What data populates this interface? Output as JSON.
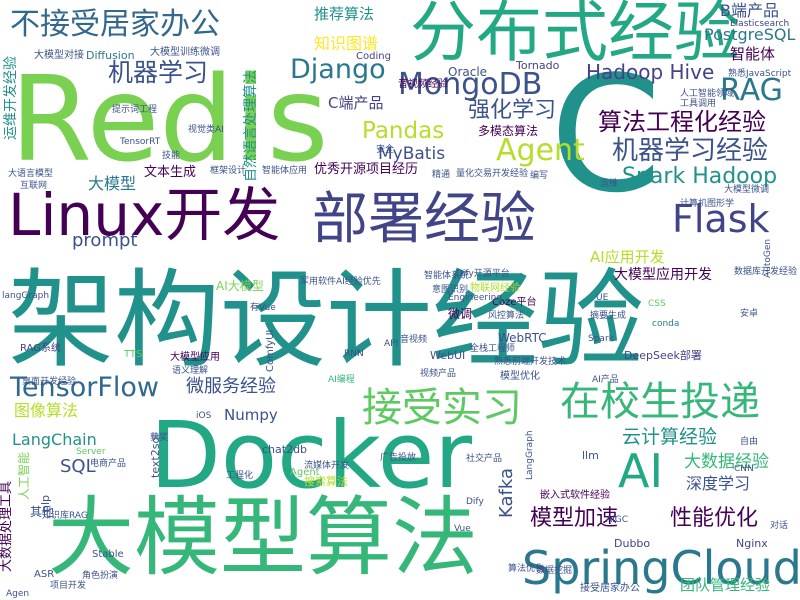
{
  "colors": {
    "background": "#ffffff",
    "palette": [
      "#440154",
      "#3b528b",
      "#21918c",
      "#5ec962",
      "#fde725",
      "#7ad151",
      "#2a788e",
      "#414487",
      "#22a884",
      "#35b779",
      "#b5de2b",
      "#31688e"
    ]
  },
  "words": [
    {
      "text": "架构设计经验",
      "color": "#21918c",
      "vertical": false
    },
    {
      "text": "Redis",
      "color": "#7ad151",
      "vertical": false
    },
    {
      "text": "Docker",
      "color": "#22a884",
      "vertical": false
    },
    {
      "text": "大模型算法",
      "color": "#35b779",
      "vertical": false
    },
    {
      "text": "C",
      "color": "#21918c",
      "vertical": false
    },
    {
      "text": "分布式经验",
      "color": "#22a884",
      "vertical": false
    },
    {
      "text": "Linux开发",
      "color": "#440154",
      "vertical": false
    },
    {
      "text": "部署经验",
      "color": "#414487",
      "vertical": false
    },
    {
      "text": "不接受居家办公",
      "color": "#31688e",
      "vertical": false
    },
    {
      "text": "SpringCloud",
      "color": "#2a788e",
      "vertical": false
    },
    {
      "text": "接受实习",
      "color": "#5ec962",
      "vertical": false
    },
    {
      "text": "在校生投递",
      "color": "#35b779",
      "vertical": false
    },
    {
      "text": "AI",
      "color": "#22a884",
      "vertical": false
    },
    {
      "text": "Flask",
      "color": "#414487",
      "vertical": false
    },
    {
      "text": "MongoDB",
      "color": "#3b528b",
      "vertical": false
    },
    {
      "text": "TensorFlow",
      "color": "#31688e",
      "vertical": false
    },
    {
      "text": "Django",
      "color": "#2a788e",
      "vertical": false
    },
    {
      "text": "Agent",
      "color": "#b5de2b",
      "vertical": false
    },
    {
      "text": "RAG",
      "color": "#2a788e",
      "vertical": false
    },
    {
      "text": "机器学习",
      "color": "#3b528b",
      "vertical": false
    },
    {
      "text": "算法工程化经验",
      "color": "#440154",
      "vertical": false
    },
    {
      "text": "机器学习经验",
      "color": "#3b528b",
      "vertical": false
    },
    {
      "text": "Spark Hadoop",
      "color": "#21918c",
      "vertical": false
    },
    {
      "text": "强化学习",
      "color": "#3b528b",
      "vertical": false
    },
    {
      "text": "Hadoop Hive",
      "color": "#414487",
      "vertical": false
    },
    {
      "text": "Pandas",
      "color": "#b5de2b",
      "vertical": false
    },
    {
      "text": "推荐算法",
      "color": "#21918c",
      "vertical": false
    },
    {
      "text": "知识图谱",
      "color": "#fde725",
      "vertical": false
    },
    {
      "text": "B端产品",
      "color": "#3b528b",
      "vertical": false
    },
    {
      "text": "PostgreSQL",
      "color": "#2a788e",
      "vertical": false
    },
    {
      "text": "智能体",
      "color": "#440154",
      "vertical": false
    },
    {
      "text": "微服务经验",
      "color": "#3b528b",
      "vertical": false
    },
    {
      "text": "云计算经验",
      "color": "#21918c",
      "vertical": false
    },
    {
      "text": "大数据经验",
      "color": "#35b779",
      "vertical": false
    },
    {
      "text": "深度学习",
      "color": "#3b528b",
      "vertical": false
    },
    {
      "text": "模型加速",
      "color": "#440154",
      "vertical": false
    },
    {
      "text": "性能优化",
      "color": "#440154",
      "vertical": false
    },
    {
      "text": "团队管理经验",
      "color": "#35b779",
      "vertical": false
    },
    {
      "text": "Kafka",
      "color": "#3b528b",
      "vertical": true
    },
    {
      "text": "prompt",
      "color": "#3b528b",
      "vertical": false
    },
    {
      "text": "SQL",
      "color": "#3b528b",
      "vertical": false
    },
    {
      "text": "LangChain",
      "color": "#21918c",
      "vertical": false
    },
    {
      "text": "图像算法",
      "color": "#b5de2b",
      "vertical": false
    },
    {
      "text": "Numpy",
      "color": "#3b528b",
      "vertical": false
    },
    {
      "text": "MyBatis",
      "color": "#3b528b",
      "vertical": false
    },
    {
      "text": "C端产品",
      "color": "#414487",
      "vertical": false
    },
    {
      "text": "AI应用开发",
      "color": "#b5de2b",
      "vertical": false
    },
    {
      "text": "大模型应用开发",
      "color": "#440154",
      "vertical": false
    },
    {
      "text": "优秀开源项目经历",
      "color": "#440154",
      "vertical": false
    },
    {
      "text": "大模型",
      "color": "#2a788e",
      "vertical": false
    },
    {
      "text": "文本生成",
      "color": "#440154",
      "vertical": false
    },
    {
      "text": "自然语言处理算法",
      "color": "#21918c",
      "vertical": true
    },
    {
      "text": "多模态算法",
      "color": "#440154",
      "vertical": false
    },
    {
      "text": "运维开发经验",
      "color": "#21918c",
      "vertical": true
    },
    {
      "text": "大模型对接",
      "color": "#3b528b",
      "vertical": false
    },
    {
      "text": "Diffusion",
      "color": "#2a788e",
      "vertical": false
    },
    {
      "text": "大模型训练微调",
      "color": "#3b528b",
      "vertical": false
    },
    {
      "text": "Oracle",
      "color": "#3b528b",
      "vertical": false
    },
    {
      "text": "Tornado",
      "color": "#414487",
      "vertical": false
    },
    {
      "text": "Coding",
      "color": "#414487",
      "vertical": false
    },
    {
      "text": "音视频经验",
      "color": "#440154",
      "vertical": false
    },
    {
      "text": "AI大模型",
      "color": "#7ad151",
      "vertical": false
    },
    {
      "text": "RAG系统",
      "color": "#414487",
      "vertical": false
    },
    {
      "text": "WebRTC",
      "color": "#3b528b",
      "vertical": false
    },
    {
      "text": "WebUI",
      "color": "#3b528b",
      "vertical": false
    },
    {
      "text": "微调",
      "color": "#440154",
      "vertical": false
    },
    {
      "text": "Coze平台",
      "color": "#440154",
      "vertical": false
    },
    {
      "text": "DeepSeek部署",
      "color": "#414487",
      "vertical": false
    },
    {
      "text": "chat2db",
      "color": "#3b528b",
      "vertical": false
    },
    {
      "text": "大数据处理工具",
      "color": "#440154",
      "vertical": true
    },
    {
      "text": "人工智能",
      "color": "#7ad151",
      "vertical": true
    },
    {
      "text": "其他",
      "color": "#3b528b",
      "vertical": false
    },
    {
      "text": "Nginx",
      "color": "#414487",
      "vertical": false
    },
    {
      "text": "Dubbo",
      "color": "#414487",
      "vertical": false
    },
    {
      "text": "嵌入式软件经验",
      "color": "#440154",
      "vertical": false
    },
    {
      "text": "Stable",
      "color": "#3b528b",
      "vertical": false
    },
    {
      "text": "ASR",
      "color": "#3b528b",
      "vertical": false
    },
    {
      "text": "接受居家办公",
      "color": "#3b528b",
      "vertical": false
    },
    {
      "text": "项目开发",
      "color": "#3b528b",
      "vertical": false
    },
    {
      "text": "text2sql",
      "color": "#3b528b",
      "vertical": true
    },
    {
      "text": "TTS",
      "color": "#5ec962",
      "vertical": false
    },
    {
      "text": "Elasticsearch",
      "color": "#414487",
      "vertical": false
    },
    {
      "text": "llm",
      "color": "#3b528b",
      "vertical": false
    },
    {
      "text": "nlp",
      "color": "#3b528b",
      "vertical": true
    },
    {
      "text": "大模型应用",
      "color": "#440154",
      "vertical": false
    },
    {
      "text": "Spark",
      "color": "#3b528b",
      "vertical": false
    },
    {
      "text": "Agent",
      "color": "#5ec962",
      "vertical": false
    },
    {
      "text": "conda",
      "color": "#2a788e",
      "vertical": false
    },
    {
      "text": "ComfyUI",
      "color": "#3b528b",
      "vertical": true
    },
    {
      "text": "langGraph",
      "color": "#3b528b",
      "vertical": false
    },
    {
      "text": "知识库RAG",
      "color": "#3b528b",
      "vertical": false
    },
    {
      "text": "LangGraph",
      "color": "#3b528b",
      "vertical": true
    },
    {
      "text": "TensorRT",
      "color": "#3b528b",
      "vertical": false
    },
    {
      "text": "Server",
      "color": "#5ec962",
      "vertical": false
    },
    {
      "text": "Dify开源平台",
      "color": "#3b528b",
      "vertical": false
    },
    {
      "text": "AutoGen",
      "color": "#3b528b",
      "vertical": true
    },
    {
      "text": "CNN",
      "color": "#3b528b",
      "vertical": false
    },
    {
      "text": "RNN",
      "color": "#3b528b",
      "vertical": false
    },
    {
      "text": "AI编程",
      "color": "#35b779",
      "vertical": false
    },
    {
      "text": "AI产品",
      "color": "#3b528b",
      "vertical": false
    },
    {
      "text": "语义理解",
      "color": "#3b528b",
      "vertical": false
    },
    {
      "text": "物联网经验",
      "color": "#b5de2b",
      "vertical": false
    },
    {
      "text": "全栈工程师",
      "color": "#3b528b",
      "vertical": false
    },
    {
      "text": "熟悉前端开发技术",
      "color": "#3b528b",
      "vertical": false
    },
    {
      "text": "意图识别",
      "color": "#3b528b",
      "vertical": false
    },
    {
      "text": "风控算法",
      "color": "#3b528b",
      "vertical": false
    },
    {
      "text": "工具调用",
      "color": "#3b528b",
      "vertical": false
    },
    {
      "text": "大语言模型",
      "color": "#3b528b",
      "vertical": false
    },
    {
      "text": "互联网",
      "color": "#3b528b",
      "vertical": false
    },
    {
      "text": "框架设计",
      "color": "#3b528b",
      "vertical": false
    },
    {
      "text": "智能体应用",
      "color": "#3b528b",
      "vertical": false
    },
    {
      "text": "量化交易开发经验",
      "color": "#3b528b",
      "vertical": false
    },
    {
      "text": "大模型微调",
      "color": "#3b528b",
      "vertical": false
    },
    {
      "text": "计算机图形学",
      "color": "#3b528b",
      "vertical": false
    },
    {
      "text": "数据库开发经验",
      "color": "#3b528b",
      "vertical": false
    },
    {
      "text": "人工智能领域",
      "color": "#3b528b",
      "vertical": false
    },
    {
      "text": "熟悉JavaScript",
      "color": "#3b528b",
      "vertical": false
    },
    {
      "text": "军用软件AI经验优先",
      "color": "#3b528b",
      "vertical": false
    },
    {
      "text": "智能体系统",
      "color": "#3b528b",
      "vertical": false
    },
    {
      "text": "搜索算法",
      "color": "#b5de2b",
      "vertical": false
    },
    {
      "text": "流媒体开发",
      "color": "#3b528b",
      "vertical": false
    },
    {
      "text": "工程化",
      "color": "#3b528b",
      "vertical": false
    },
    {
      "text": "广告投放",
      "color": "#3b528b",
      "vertical": false
    },
    {
      "text": "模型优化",
      "color": "#3b528b",
      "vertical": false
    },
    {
      "text": "桌面开发经验",
      "color": "#3b528b",
      "vertical": false
    },
    {
      "text": "社交产品",
      "color": "#3b528b",
      "vertical": false
    },
    {
      "text": "数据挖掘",
      "color": "#3b528b",
      "vertical": false
    },
    {
      "text": "算法优化",
      "color": "#3b528b",
      "vertical": false
    },
    {
      "text": "视频产品",
      "color": "#3b528b",
      "vertical": false
    },
    {
      "text": "电商产品",
      "color": "#3b528b",
      "vertical": false
    },
    {
      "text": "角色扮演",
      "color": "#3b528b",
      "vertical": false
    },
    {
      "text": "运维",
      "color": "#3b528b",
      "vertical": false
    },
    {
      "text": "精通",
      "color": "#3b528b",
      "vertical": false
    },
    {
      "text": "编写",
      "color": "#3b528b",
      "vertical": false
    },
    {
      "text": "技能",
      "color": "#3b528b",
      "vertical": false
    },
    {
      "text": "安全",
      "color": "#3b528b",
      "vertical": false
    },
    {
      "text": "获奖",
      "color": "#3b528b",
      "vertical": false
    },
    {
      "text": "iOS",
      "color": "#3b528b",
      "vertical": false
    },
    {
      "text": "Vue",
      "color": "#3b528b",
      "vertical": false
    },
    {
      "text": "Dify",
      "color": "#3b528b",
      "vertical": false
    },
    {
      "text": "API",
      "color": "#3b528b",
      "vertical": false
    },
    {
      "text": "CSS",
      "color": "#5ec962",
      "vertical": false
    },
    {
      "text": "AIGC",
      "color": "#3b528b",
      "vertical": false
    },
    {
      "text": "Agen",
      "color": "#3b528b",
      "vertical": false
    },
    {
      "text": "安卓",
      "color": "#3b528b",
      "vertical": false
    },
    {
      "text": "UE",
      "color": "#3b528b",
      "vertical": false
    },
    {
      "text": "提示词工程",
      "color": "#3b528b",
      "vertical": false
    },
    {
      "text": "视觉类AI",
      "color": "#3b528b",
      "vertical": false
    },
    {
      "text": "Engineering",
      "color": "#3b528b",
      "vertical": false
    },
    {
      "text": "摘要生成",
      "color": "#3b528b",
      "vertical": false
    },
    {
      "text": "自由",
      "color": "#3b528b",
      "vertical": false
    },
    {
      "text": "对话",
      "color": "#3b528b",
      "vertical": false
    },
    {
      "text": "音视频",
      "color": "#3b528b",
      "vertical": false
    },
    {
      "text": "有Vue",
      "color": "#3b528b",
      "vertical": false
    }
  ]
}
